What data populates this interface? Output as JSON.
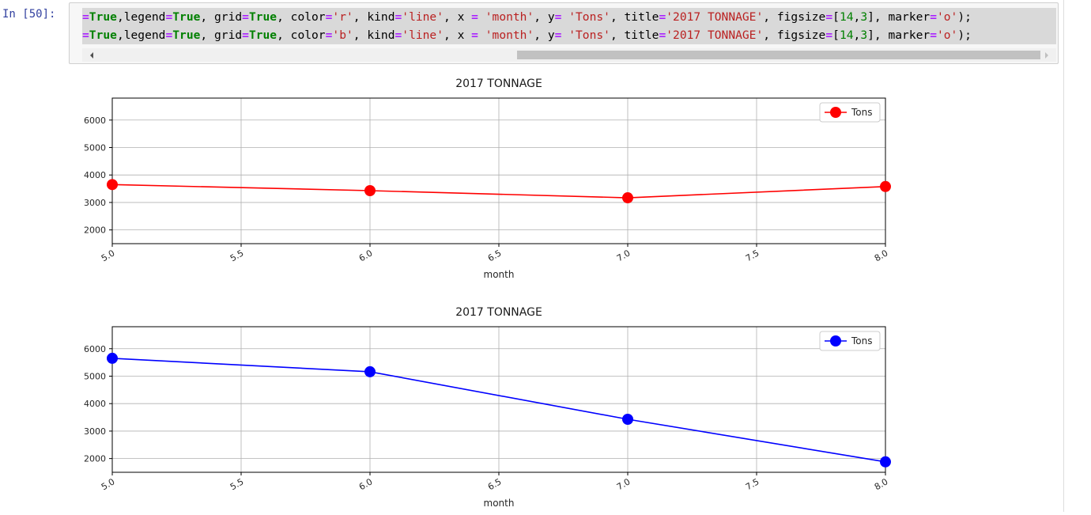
{
  "cell": {
    "prompt": "In [50]:",
    "code_lines": [
      [
        {
          "t": "=",
          "c": "o"
        },
        {
          "t": "True",
          "c": "k"
        },
        {
          "t": ",legend",
          "c": "n"
        },
        {
          "t": "=",
          "c": "o"
        },
        {
          "t": "True",
          "c": "k"
        },
        {
          "t": ", grid",
          "c": "n"
        },
        {
          "t": "=",
          "c": "o"
        },
        {
          "t": "True",
          "c": "k"
        },
        {
          "t": ", color",
          "c": "n"
        },
        {
          "t": "=",
          "c": "o"
        },
        {
          "t": "'r'",
          "c": "s"
        },
        {
          "t": ", kind",
          "c": "n"
        },
        {
          "t": "=",
          "c": "o"
        },
        {
          "t": "'line'",
          "c": "s"
        },
        {
          "t": ", x ",
          "c": "n"
        },
        {
          "t": "=",
          "c": "o"
        },
        {
          "t": " ",
          "c": "n"
        },
        {
          "t": "'month'",
          "c": "s"
        },
        {
          "t": ", y",
          "c": "n"
        },
        {
          "t": "=",
          "c": "o"
        },
        {
          "t": " ",
          "c": "n"
        },
        {
          "t": "'Tons'",
          "c": "s"
        },
        {
          "t": ", title",
          "c": "n"
        },
        {
          "t": "=",
          "c": "o"
        },
        {
          "t": "'2017 TONNAGE'",
          "c": "s"
        },
        {
          "t": ", figsize",
          "c": "n"
        },
        {
          "t": "=",
          "c": "o"
        },
        {
          "t": "[",
          "c": "n"
        },
        {
          "t": "14",
          "c": "num"
        },
        {
          "t": ",",
          "c": "n"
        },
        {
          "t": "3",
          "c": "num"
        },
        {
          "t": "], marker",
          "c": "n"
        },
        {
          "t": "=",
          "c": "o"
        },
        {
          "t": "'o'",
          "c": "s"
        },
        {
          "t": ");",
          "c": "n"
        }
      ],
      [
        {
          "t": "=",
          "c": "o"
        },
        {
          "t": "True",
          "c": "k"
        },
        {
          "t": ",legend",
          "c": "n"
        },
        {
          "t": "=",
          "c": "o"
        },
        {
          "t": "True",
          "c": "k"
        },
        {
          "t": ", grid",
          "c": "n"
        },
        {
          "t": "=",
          "c": "o"
        },
        {
          "t": "True",
          "c": "k"
        },
        {
          "t": ", color",
          "c": "n"
        },
        {
          "t": "=",
          "c": "o"
        },
        {
          "t": "'b'",
          "c": "s"
        },
        {
          "t": ", kind",
          "c": "n"
        },
        {
          "t": "=",
          "c": "o"
        },
        {
          "t": "'line'",
          "c": "s"
        },
        {
          "t": ", x ",
          "c": "n"
        },
        {
          "t": "=",
          "c": "o"
        },
        {
          "t": " ",
          "c": "n"
        },
        {
          "t": "'month'",
          "c": "s"
        },
        {
          "t": ", y",
          "c": "n"
        },
        {
          "t": "=",
          "c": "o"
        },
        {
          "t": " ",
          "c": "n"
        },
        {
          "t": "'Tons'",
          "c": "s"
        },
        {
          "t": ", title",
          "c": "n"
        },
        {
          "t": "=",
          "c": "o"
        },
        {
          "t": "'2017 TONNAGE'",
          "c": "s"
        },
        {
          "t": ", figsize",
          "c": "n"
        },
        {
          "t": "=",
          "c": "o"
        },
        {
          "t": "[",
          "c": "n"
        },
        {
          "t": "14",
          "c": "num"
        },
        {
          "t": ",",
          "c": "n"
        },
        {
          "t": "3",
          "c": "num"
        },
        {
          "t": "], marker",
          "c": "n"
        },
        {
          "t": "=",
          "c": "o"
        },
        {
          "t": "'o'",
          "c": "s"
        },
        {
          "t": ");",
          "c": "n"
        }
      ]
    ]
  },
  "chart_data": [
    {
      "type": "line",
      "title": "2017 TONNAGE",
      "xlabel": "month",
      "ylabel": "",
      "x": [
        5.0,
        6.0,
        7.0,
        8.0
      ],
      "xticks": [
        "5.0",
        "5.5",
        "6.0",
        "6.5",
        "7.0",
        "7.5",
        "8.0"
      ],
      "yticks": [
        "2000",
        "3000",
        "4000",
        "5000",
        "6000"
      ],
      "xlim": [
        5.0,
        8.0
      ],
      "ylim": [
        1500,
        6800
      ],
      "grid": true,
      "legend_position": "top-right",
      "marker": "o",
      "series": [
        {
          "name": "Tons",
          "color": "#ff0000",
          "values": [
            3650,
            3430,
            3170,
            3580
          ]
        }
      ]
    },
    {
      "type": "line",
      "title": "2017 TONNAGE",
      "xlabel": "month",
      "ylabel": "",
      "x": [
        5.0,
        6.0,
        7.0,
        8.0
      ],
      "xticks": [
        "5.0",
        "5.5",
        "6.0",
        "6.5",
        "7.0",
        "7.5",
        "8.0"
      ],
      "yticks": [
        "2000",
        "3000",
        "4000",
        "5000",
        "6000"
      ],
      "xlim": [
        5.0,
        8.0
      ],
      "ylim": [
        1500,
        6800
      ],
      "grid": true,
      "legend_position": "top-right",
      "marker": "o",
      "series": [
        {
          "name": "Tons",
          "color": "#0000ff",
          "values": [
            5650,
            5160,
            3430,
            1880
          ]
        }
      ]
    }
  ]
}
